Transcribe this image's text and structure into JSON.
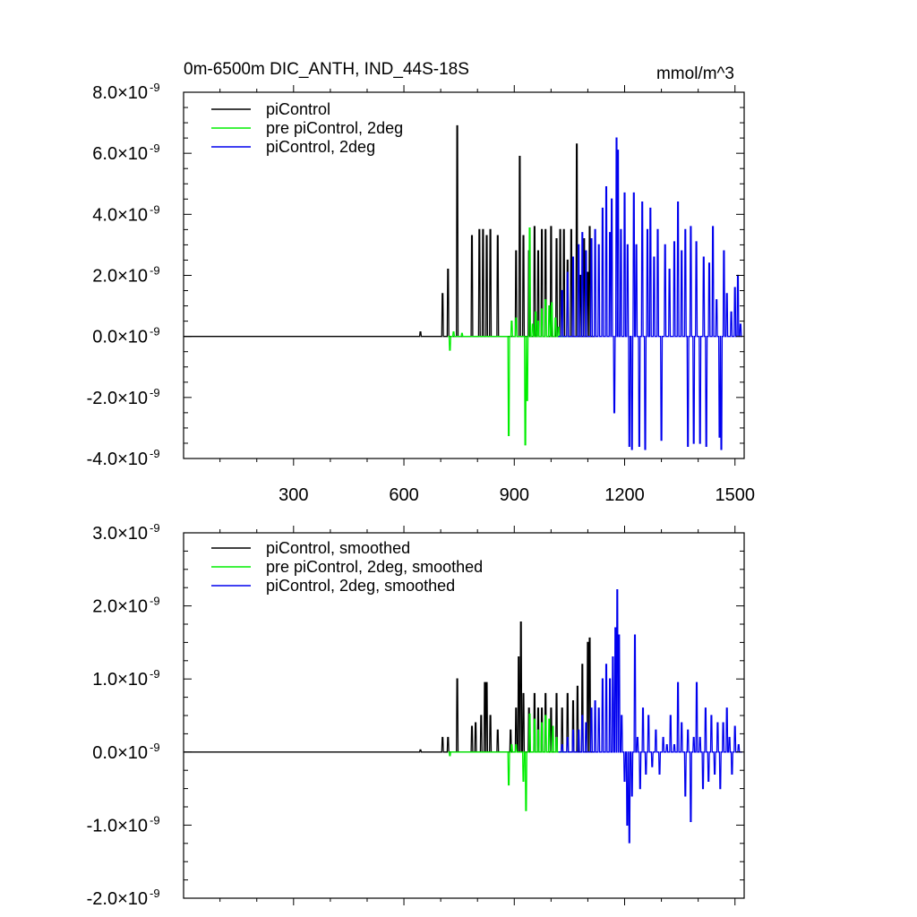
{
  "header": {
    "title": "0m-6500m DIC_ANTH, IND_44S-18S",
    "units": "mmol/m^3"
  },
  "chart_data": [
    {
      "type": "line",
      "title": "0m-6500m DIC_ANTH, IND_44S-18S",
      "units_label": "mmol/m^3",
      "xlim": [
        1,
        1525
      ],
      "ylim": [
        -4e-09,
        8e-09
      ],
      "xticks": [
        300,
        600,
        900,
        1200,
        1500
      ],
      "xtick_labels": [
        "300",
        "600",
        "900",
        "1200",
        "1500"
      ],
      "yticks": [
        -4.0,
        -2.0,
        0.0,
        2.0,
        4.0,
        6.0,
        8.0
      ],
      "ytick_labels": [
        {
          "mant": "-4.0",
          "exp": "-9"
        },
        {
          "mant": "-2.0",
          "exp": "-9"
        },
        {
          "mant": "0.0",
          "exp": "-9"
        },
        {
          "mant": "2.0",
          "exp": "-9"
        },
        {
          "mant": "4.0",
          "exp": "-9"
        },
        {
          "mant": "6.0",
          "exp": "-9"
        },
        {
          "mant": "8.0",
          "exp": "-9"
        }
      ],
      "ytick_prefix": "×10",
      "y_scale": 1e-09,
      "legend_position": "top-left",
      "series": [
        {
          "name": "piControl",
          "color": "#000000",
          "baseline": [
            1,
            1120
          ],
          "spikes": [
            [
              645,
              0.15
            ],
            [
              705,
              1.4
            ],
            [
              720,
              2.2
            ],
            [
              745,
              6.9
            ],
            [
              785,
              3.3
            ],
            [
              805,
              3.5
            ],
            [
              815,
              3.5
            ],
            [
              825,
              3.3
            ],
            [
              835,
              3.5
            ],
            [
              855,
              3.3
            ],
            [
              905,
              2.8
            ],
            [
              915,
              5.9
            ],
            [
              925,
              3.3
            ],
            [
              940,
              2.8
            ],
            [
              955,
              3.6
            ],
            [
              965,
              2.8
            ],
            [
              975,
              3.5
            ],
            [
              985,
              3.5
            ],
            [
              1000,
              3.6
            ],
            [
              1015,
              3.2
            ],
            [
              1025,
              3.5
            ],
            [
              1035,
              3.5
            ],
            [
              1045,
              2.5
            ],
            [
              1055,
              3.5
            ],
            [
              1070,
              6.3
            ],
            [
              1080,
              2.0
            ],
            [
              1090,
              3.2
            ],
            [
              1100,
              2.1
            ],
            [
              1105,
              3.6
            ]
          ]
        },
        {
          "name": "pre piControl, 2deg",
          "color": "#00ee00",
          "baseline": [
            720,
            1045
          ],
          "spikes": [
            [
              725,
              -0.45
            ],
            [
              735,
              0.15
            ],
            [
              758,
              0.1
            ],
            [
              885,
              -3.25
            ],
            [
              893,
              0.5
            ],
            [
              905,
              0.6
            ],
            [
              930,
              -3.55
            ],
            [
              935,
              -2.1
            ],
            [
              942,
              3.55
            ],
            [
              950,
              0.4
            ],
            [
              958,
              0.8
            ],
            [
              965,
              0.5
            ],
            [
              975,
              0.9
            ],
            [
              985,
              1.2
            ],
            [
              995,
              1.0
            ],
            [
              1002,
              1.1
            ],
            [
              1012,
              0.6
            ],
            [
              1020,
              0.3
            ]
          ]
        },
        {
          "name": "piControl, 2deg",
          "color": "#0000ee",
          "baseline": [
            1020,
            1520
          ],
          "spikes": [
            [
              1030,
              1.5
            ],
            [
              1045,
              2.1
            ],
            [
              1060,
              2.6
            ],
            [
              1075,
              3.0
            ],
            [
              1085,
              3.4
            ],
            [
              1095,
              2.8
            ],
            [
              1110,
              3.2
            ],
            [
              1120,
              3.5
            ],
            [
              1130,
              3.0
            ],
            [
              1140,
              4.2
            ],
            [
              1150,
              4.9
            ],
            [
              1160,
              3.4
            ],
            [
              1165,
              4.5
            ],
            [
              1172,
              -2.5
            ],
            [
              1178,
              6.5
            ],
            [
              1182,
              6.1
            ],
            [
              1190,
              3.5
            ],
            [
              1200,
              4.7
            ],
            [
              1208,
              3.0
            ],
            [
              1213,
              -3.6
            ],
            [
              1220,
              -3.7
            ],
            [
              1225,
              4.7
            ],
            [
              1232,
              3.0
            ],
            [
              1240,
              -3.6
            ],
            [
              1248,
              4.4
            ],
            [
              1256,
              -3.7
            ],
            [
              1262,
              3.5
            ],
            [
              1270,
              4.2
            ],
            [
              1280,
              2.6
            ],
            [
              1290,
              3.5
            ],
            [
              1300,
              -3.4
            ],
            [
              1310,
              3.0
            ],
            [
              1322,
              2.2
            ],
            [
              1335,
              3.1
            ],
            [
              1345,
              4.4
            ],
            [
              1355,
              2.8
            ],
            [
              1365,
              3.5
            ],
            [
              1372,
              -3.6
            ],
            [
              1380,
              3.6
            ],
            [
              1388,
              -3.5
            ],
            [
              1395,
              3.1
            ],
            [
              1405,
              -3.5
            ],
            [
              1415,
              2.6
            ],
            [
              1422,
              -3.6
            ],
            [
              1430,
              2.4
            ],
            [
              1440,
              3.6
            ],
            [
              1450,
              1.2
            ],
            [
              1458,
              -3.3
            ],
            [
              1463,
              -3.7
            ],
            [
              1470,
              2.8
            ],
            [
              1478,
              1.4
            ],
            [
              1490,
              0.8
            ],
            [
              1500,
              1.6
            ],
            [
              1508,
              2.0
            ],
            [
              1515,
              0.4
            ]
          ]
        }
      ]
    },
    {
      "type": "line",
      "xlim": [
        1,
        1525
      ],
      "ylim": [
        -2e-09,
        3e-09
      ],
      "xticks": [
        300,
        600,
        900,
        1200,
        1500
      ],
      "yticks": [
        -2.0,
        -1.0,
        0.0,
        1.0,
        2.0,
        3.0
      ],
      "ytick_labels": [
        {
          "mant": "-2.0",
          "exp": "-9"
        },
        {
          "mant": "-1.0",
          "exp": "-9"
        },
        {
          "mant": "0.0",
          "exp": "-9"
        },
        {
          "mant": "1.0",
          "exp": "-9"
        },
        {
          "mant": "2.0",
          "exp": "-9"
        },
        {
          "mant": "3.0",
          "exp": "-9"
        }
      ],
      "ytick_prefix": "×10",
      "y_scale": 1e-09,
      "legend_position": "top-left",
      "series": [
        {
          "name": "piControl, smoothed",
          "color": "#000000",
          "baseline": [
            1,
            1120
          ],
          "spikes": [
            [
              645,
              0.03
            ],
            [
              705,
              0.2
            ],
            [
              720,
              0.2
            ],
            [
              745,
              1.0
            ],
            [
              785,
              0.35
            ],
            [
              795,
              0.4
            ],
            [
              810,
              0.5
            ],
            [
              820,
              0.95
            ],
            [
              825,
              0.95
            ],
            [
              835,
              0.5
            ],
            [
              855,
              0.3
            ],
            [
              890,
              0.3
            ],
            [
              905,
              0.6
            ],
            [
              912,
              1.3
            ],
            [
              918,
              1.78
            ],
            [
              925,
              0.8
            ],
            [
              940,
              0.6
            ],
            [
              955,
              0.8
            ],
            [
              965,
              0.6
            ],
            [
              975,
              0.6
            ],
            [
              985,
              0.8
            ],
            [
              1000,
              0.6
            ],
            [
              1015,
              0.8
            ],
            [
              1030,
              0.6
            ],
            [
              1045,
              0.8
            ],
            [
              1060,
              0.7
            ],
            [
              1072,
              0.9
            ],
            [
              1085,
              1.2
            ],
            [
              1100,
              1.5
            ],
            [
              1105,
              1.56
            ]
          ]
        },
        {
          "name": "pre piControl, 2deg, smoothed",
          "color": "#00ee00",
          "baseline": [
            720,
            1045
          ],
          "spikes": [
            [
              725,
              -0.05
            ],
            [
              885,
              -0.45
            ],
            [
              893,
              0.1
            ],
            [
              905,
              0.1
            ],
            [
              925,
              -0.4
            ],
            [
              932,
              -0.8
            ],
            [
              942,
              0.52
            ],
            [
              955,
              0.45
            ],
            [
              965,
              0.3
            ],
            [
              975,
              0.4
            ],
            [
              985,
              0.5
            ],
            [
              995,
              0.45
            ],
            [
              1005,
              0.35
            ],
            [
              1015,
              0.2
            ]
          ]
        },
        {
          "name": "piControl, 2deg, smoothed",
          "color": "#0000ee",
          "baseline": [
            1020,
            1520
          ],
          "spikes": [
            [
              1030,
              0.1
            ],
            [
              1045,
              0.2
            ],
            [
              1060,
              0.3
            ],
            [
              1075,
              0.3
            ],
            [
              1085,
              0.5
            ],
            [
              1095,
              0.4
            ],
            [
              1110,
              0.6
            ],
            [
              1120,
              0.7
            ],
            [
              1130,
              0.6
            ],
            [
              1140,
              1.0
            ],
            [
              1150,
              1.2
            ],
            [
              1160,
              1.0
            ],
            [
              1168,
              1.3
            ],
            [
              1175,
              1.7
            ],
            [
              1180,
              2.22
            ],
            [
              1185,
              1.6
            ],
            [
              1192,
              0.5
            ],
            [
              1200,
              -0.4
            ],
            [
              1207,
              -1.0
            ],
            [
              1213,
              -1.24
            ],
            [
              1220,
              -0.6
            ],
            [
              1228,
              1.6
            ],
            [
              1235,
              0.2
            ],
            [
              1242,
              -0.5
            ],
            [
              1250,
              0.6
            ],
            [
              1258,
              -0.3
            ],
            [
              1265,
              0.5
            ],
            [
              1275,
              -0.2
            ],
            [
              1285,
              0.3
            ],
            [
              1295,
              -0.3
            ],
            [
              1305,
              0.2
            ],
            [
              1315,
              0.1
            ],
            [
              1325,
              0.5
            ],
            [
              1335,
              0.1
            ],
            [
              1345,
              0.95
            ],
            [
              1355,
              0.4
            ],
            [
              1365,
              -0.6
            ],
            [
              1372,
              0.3
            ],
            [
              1380,
              -0.95
            ],
            [
              1388,
              0.2
            ],
            [
              1396,
              0.95
            ],
            [
              1405,
              0.2
            ],
            [
              1413,
              -0.5
            ],
            [
              1420,
              0.6
            ],
            [
              1428,
              -0.4
            ],
            [
              1436,
              0.5
            ],
            [
              1445,
              -0.3
            ],
            [
              1453,
              0.4
            ],
            [
              1460,
              -0.5
            ],
            [
              1468,
              0.4
            ],
            [
              1478,
              0.6
            ],
            [
              1485,
              0.2
            ],
            [
              1492,
              -0.3
            ],
            [
              1500,
              0.35
            ],
            [
              1510,
              0.1
            ]
          ]
        }
      ]
    }
  ]
}
